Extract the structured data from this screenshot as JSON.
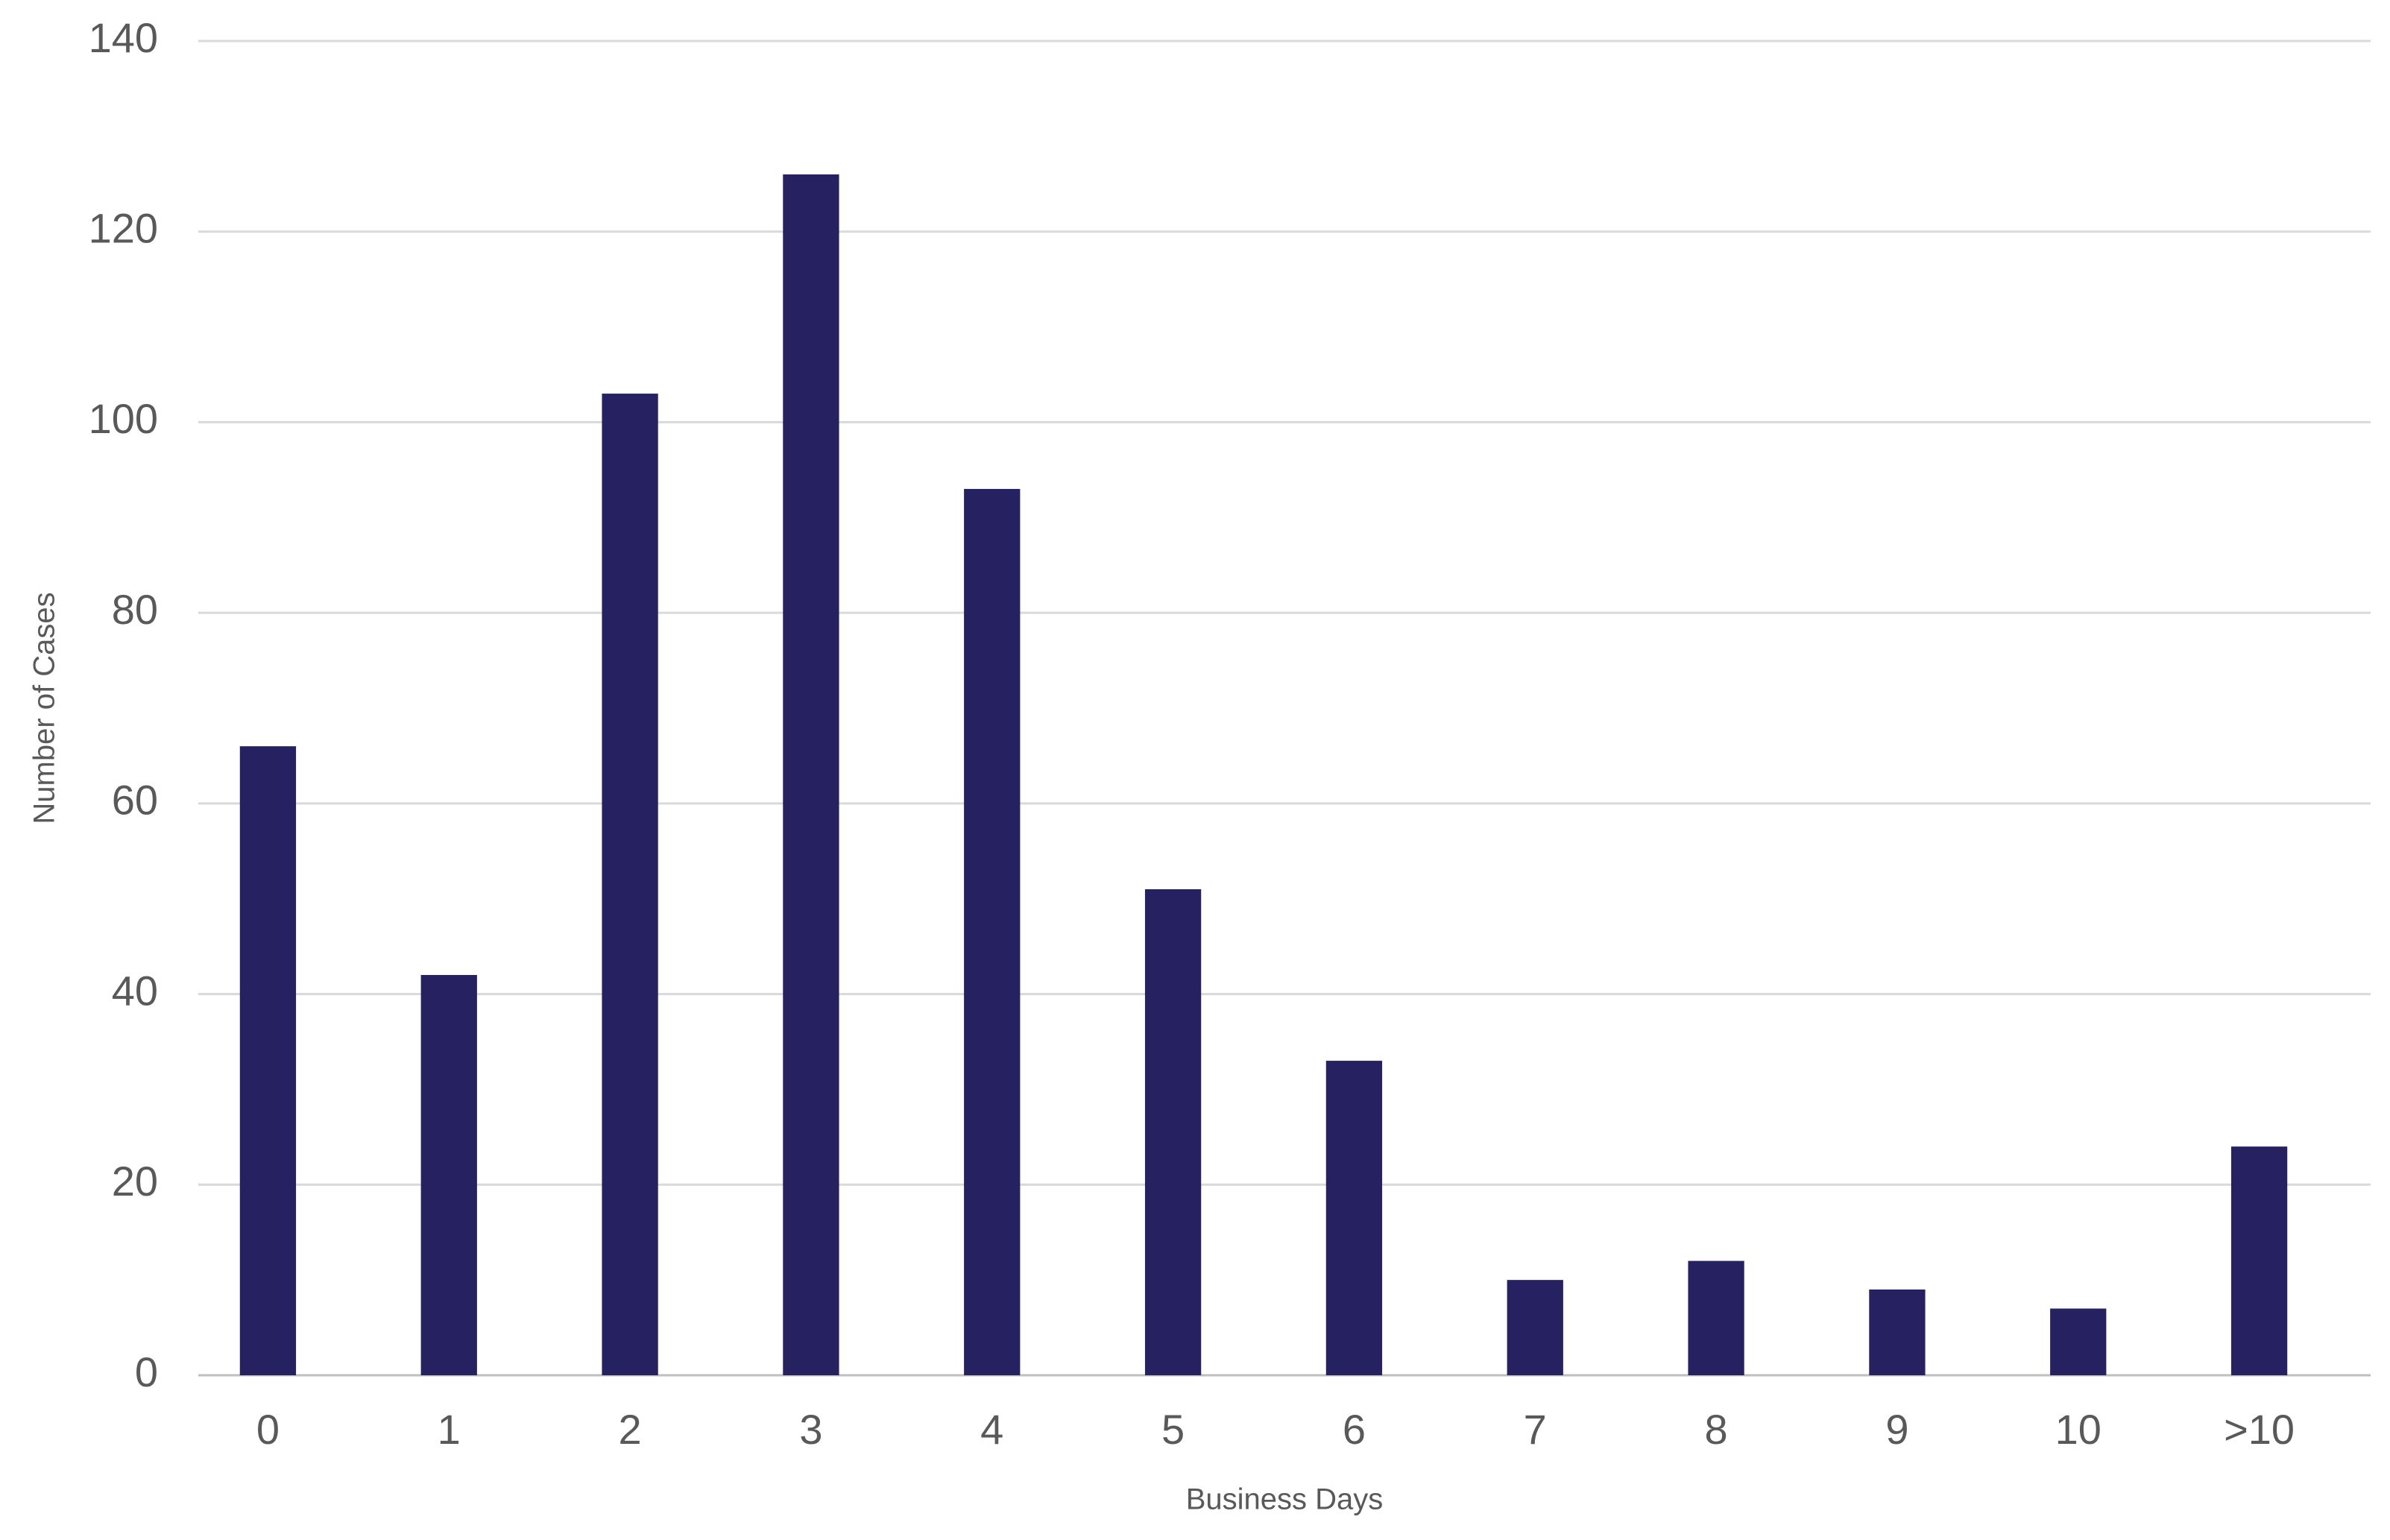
{
  "chart_data": {
    "type": "bar",
    "x_label": "Business Days",
    "y_label": "Number of Cases",
    "categories": [
      "0",
      "1",
      "2",
      "3",
      "4",
      "5",
      "6",
      "7",
      "8",
      "9",
      "10",
      ">10"
    ],
    "values": [
      66,
      42,
      103,
      126,
      93,
      51,
      33,
      10,
      12,
      9,
      7,
      24
    ],
    "color": "#262262",
    "ylim": [
      0,
      140
    ],
    "yticks": [
      0,
      20,
      40,
      60,
      80,
      100,
      120,
      140
    ],
    "grid": true
  }
}
